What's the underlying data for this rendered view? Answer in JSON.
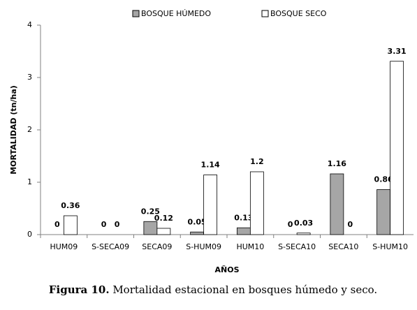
{
  "chart_data": {
    "type": "bar",
    "x_axis_label": "AÑOS",
    "y_axis_label": "MORTALIDAD (tn/ha)",
    "categories": [
      "HUM09",
      "S-SECA09",
      "SECA09",
      "S-HUM09",
      "HUM10",
      "S-SECA10",
      "SECA10",
      "S-HUM10"
    ],
    "series": [
      {
        "name": "BOSQUE HÚMEDO",
        "color": "#a6a6a6",
        "values": [
          0,
          0,
          0.25,
          0.05,
          0.13,
          0,
          1.16,
          0.86
        ]
      },
      {
        "name": "BOSQUE SECO",
        "color": "#ffffff",
        "values": [
          0.36,
          0,
          0.12,
          1.14,
          1.2,
          0.03,
          0,
          3.31
        ]
      }
    ],
    "ylim": [
      0,
      4
    ],
    "yticks": [
      0,
      1,
      2,
      3,
      4
    ],
    "grid": false,
    "legend": "top"
  },
  "caption": {
    "label": "Figura 10.",
    "text": "Mortalidad estacional en bosques húmedo y seco."
  }
}
